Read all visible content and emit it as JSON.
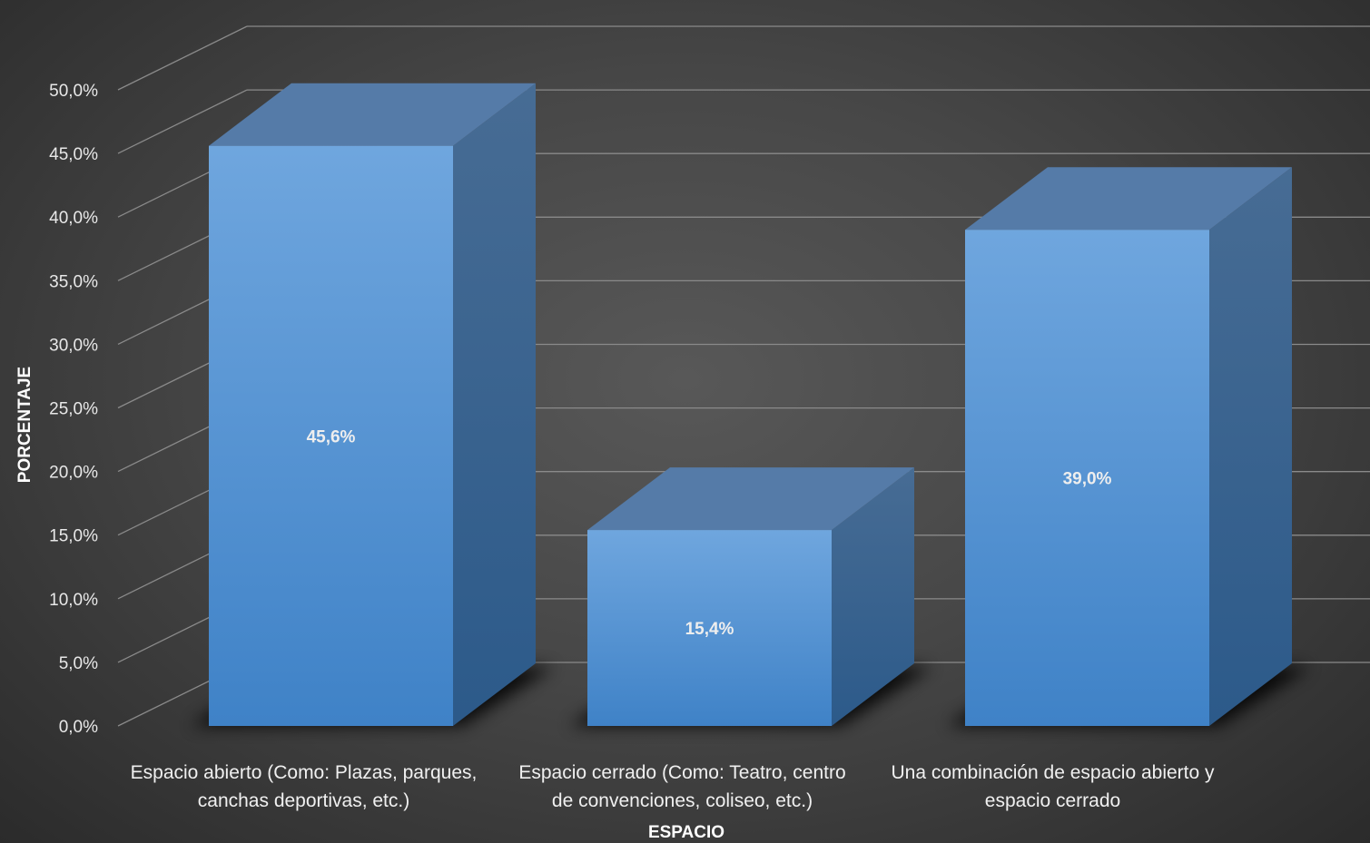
{
  "chart_data": {
    "type": "bar",
    "style": "3d-column",
    "title": "",
    "xlabel": "ESPACIO",
    "ylabel": "PORCENTAJE",
    "ylim": [
      0,
      50
    ],
    "y_tick_step": 5,
    "y_tick_labels": [
      "0,0%",
      "5,0%",
      "10,0%",
      "15,0%",
      "20,0%",
      "25,0%",
      "30,0%",
      "35,0%",
      "40,0%",
      "45,0%",
      "50,0%"
    ],
    "grid": true,
    "legend": "none",
    "categories": [
      [
        "Espacio abierto (Como: Plazas, parques,",
        "canchas deportivas, etc.)"
      ],
      [
        "Espacio cerrado (Como: Teatro, centro",
        "de convenciones, coliseo, etc.)"
      ],
      [
        "Una combinación de espacio abierto y",
        "espacio cerrado"
      ]
    ],
    "values": [
      45.6,
      15.4,
      39.0
    ],
    "data_labels": [
      "45,6%",
      "15,4%",
      "39,0%"
    ],
    "colors": {
      "bar_front_top": "#6fa6de",
      "bar_front_bottom": "#3f82c7",
      "bar_top": "#557ba8",
      "bar_side_top": "#476c94",
      "bar_side_bottom": "#2c5a8a",
      "gridline": "#8a8a8a"
    }
  }
}
